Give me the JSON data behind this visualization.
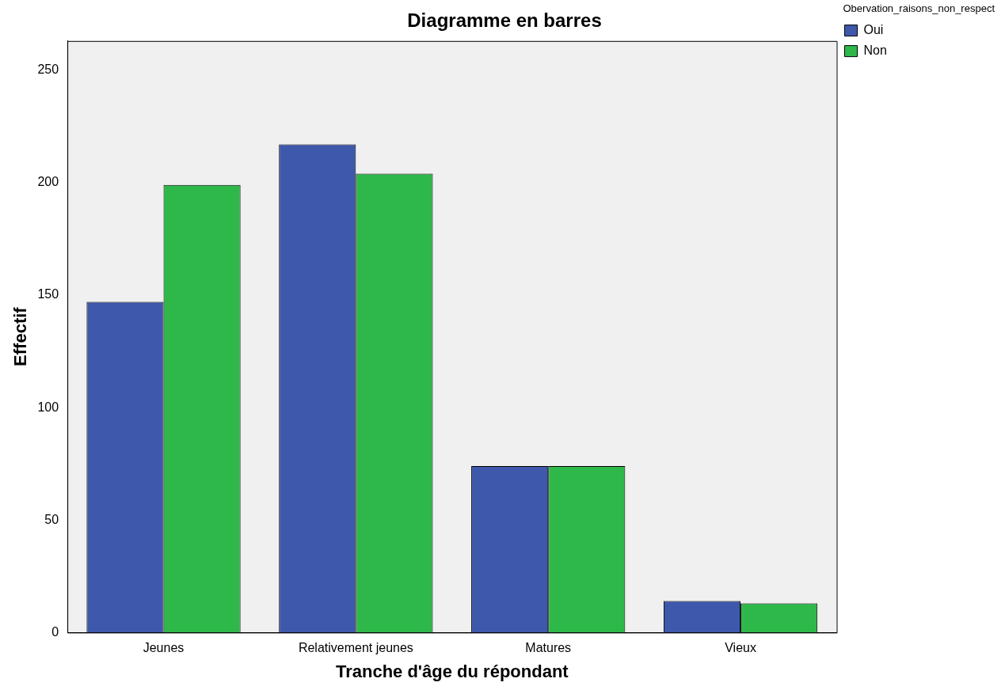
{
  "chart_data": {
    "type": "bar",
    "title": "Diagramme en barres",
    "xlabel": "Tranche d'âge du répondant",
    "ylabel": "Effectif",
    "legend_title": "Obervation_raisons_non_respect",
    "categories": [
      "Jeunes",
      "Relativement jeunes",
      "Matures",
      "Vieux"
    ],
    "series": [
      {
        "name": "Oui",
        "color": "#3e58ac",
        "values": [
          147,
          217,
          74,
          14
        ]
      },
      {
        "name": "Non",
        "color": "#2fb84a",
        "values": [
          199,
          204,
          74,
          13
        ]
      }
    ],
    "ylim": [
      0,
      263
    ],
    "yticks": [
      0,
      50,
      100,
      150,
      200,
      250
    ],
    "grid": false,
    "legend": "top right"
  }
}
